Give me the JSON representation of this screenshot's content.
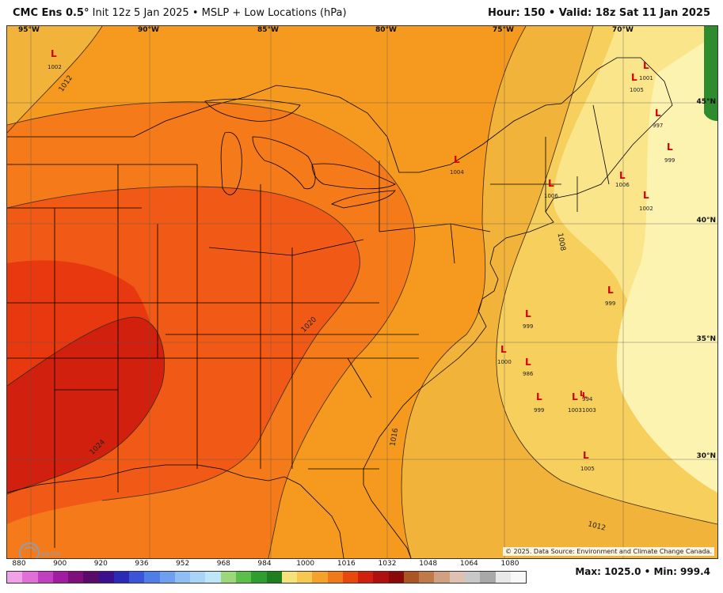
{
  "header": {
    "model": "CMC Ens 0.5°",
    "init": "Init 12z 5 Jan 2025",
    "product": "MSLP + Low Locations (hPa)",
    "hour_label": "Hour: 150",
    "valid_label": "Valid: 18z Sat 11 Jan 2025"
  },
  "map": {
    "lon_labels": [
      "95°W",
      "90°W",
      "85°W",
      "80°W",
      "75°W",
      "70°W"
    ],
    "lat_labels": [
      "45°N",
      "40°N",
      "35°N",
      "30°N"
    ],
    "isobar_labels": [
      "1012",
      "1008",
      "1020",
      "1016",
      "1024",
      "1012"
    ],
    "lows": [
      {
        "letter": "L",
        "pressure": "1002"
      },
      {
        "letter": "L",
        "pressure": "1001"
      },
      {
        "letter": "L",
        "pressure": "1005"
      },
      {
        "letter": "L",
        "pressure": "997"
      },
      {
        "letter": "L",
        "pressure": "999"
      },
      {
        "letter": "L",
        "pressure": "1004"
      },
      {
        "letter": "L",
        "pressure": "1006"
      },
      {
        "letter": "L",
        "pressure": "1006"
      },
      {
        "letter": "L",
        "pressure": "1002"
      },
      {
        "letter": "L",
        "pressure": "999"
      },
      {
        "letter": "L",
        "pressure": "999"
      },
      {
        "letter": "L",
        "pressure": "1000"
      },
      {
        "letter": "L",
        "pressure": "986"
      },
      {
        "letter": "L",
        "pressure": "999"
      },
      {
        "letter": "L",
        "pressure": "1003"
      },
      {
        "letter": "L",
        "pressure": "994"
      },
      {
        "letter": "L",
        "pressure": "1003"
      },
      {
        "letter": "L",
        "pressure": "1005"
      }
    ],
    "copyright": "© 2025. Data Source: Environment and Climate Change Canada.",
    "colors": {
      "p1012": "#f2b33a",
      "p1016": "#f59a1e",
      "p1018": "#f47a1a",
      "p1020": "#f05a16",
      "p1022": "#e8380f",
      "p1024": "#d2200e",
      "p1008": "#f7cf5c",
      "p1004": "#fbe58b",
      "p1000": "#fdf3b0",
      "p996": "#2e8b2e"
    }
  },
  "legend": {
    "labels": [
      "880",
      "900",
      "920",
      "936",
      "952",
      "968",
      "984",
      "1000",
      "1016",
      "1032",
      "1048",
      "1064",
      "1080"
    ],
    "swatches": [
      "#f2a0e8",
      "#e070d8",
      "#c040c0",
      "#a01ca0",
      "#800f7e",
      "#5a0a6a",
      "#3c0f8c",
      "#2a2ab8",
      "#3a55d8",
      "#4f7ee8",
      "#6fa0f0",
      "#8fbef5",
      "#a8d4f7",
      "#bde6f8",
      "#9ad87a",
      "#5cbf4a",
      "#2e9e2e",
      "#1f7f1f",
      "#f5e37a",
      "#f7c84f",
      "#f5a22a",
      "#f07a1a",
      "#e8480f",
      "#d2200e",
      "#b01010",
      "#8a0a0a",
      "#aa5522",
      "#c07a4a",
      "#d0a080",
      "#e0c0b0",
      "#c8c8c8",
      "#a8a8a8",
      "#e8e8e8",
      "#f8f8f8"
    ]
  },
  "stats": {
    "max_label": "Max: 1025.0",
    "min_label": "Min: 999.4"
  },
  "logo": {
    "text": "WEATHERBELL"
  }
}
